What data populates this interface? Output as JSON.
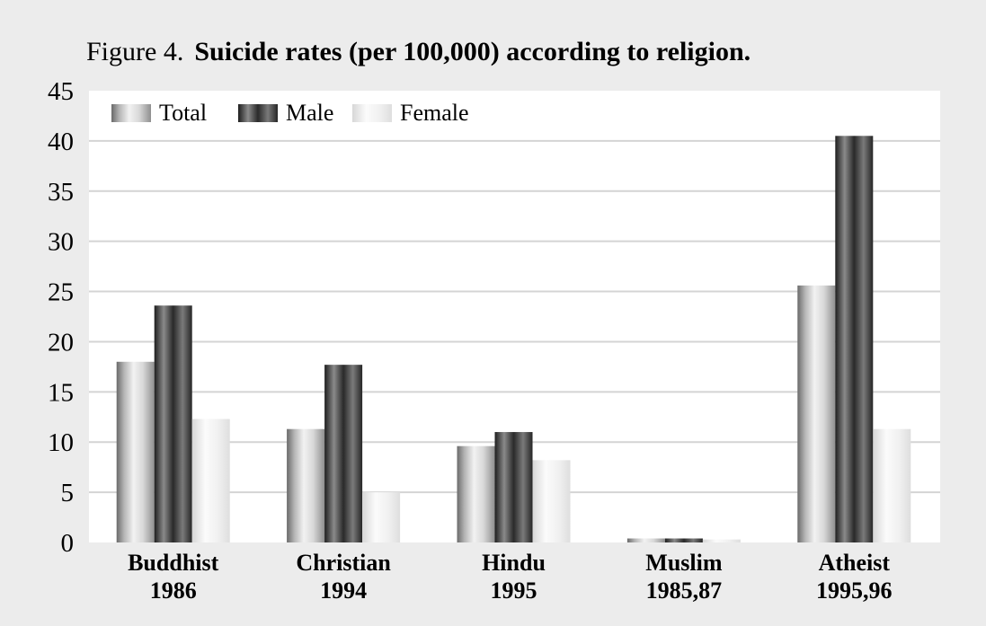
{
  "chart_data": {
    "type": "bar",
    "title_prefix": "Figure 4.",
    "title": "Suicide rates (per 100,000) according to religion.",
    "xlabel": "",
    "ylabel": "",
    "categories": [
      {
        "name": "Buddhist",
        "year": "1986"
      },
      {
        "name": "Christian",
        "year": "1994"
      },
      {
        "name": "Hindu",
        "year": "1995"
      },
      {
        "name": "Muslim",
        "year": "1985,87"
      },
      {
        "name": "Atheist",
        "year": "1995,96"
      }
    ],
    "series": [
      {
        "name": "Total",
        "values": [
          18.0,
          11.3,
          9.6,
          0.4,
          25.6
        ]
      },
      {
        "name": "Male",
        "values": [
          23.6,
          17.7,
          11.0,
          0.4,
          40.5
        ]
      },
      {
        "name": "Female",
        "values": [
          12.3,
          5.0,
          8.2,
          0.3,
          11.3
        ]
      }
    ],
    "ylim": [
      0,
      45
    ],
    "yticks": [
      0,
      5,
      10,
      15,
      20,
      25,
      30,
      35,
      40,
      45
    ],
    "grid": true,
    "legend_position": "top-left"
  }
}
